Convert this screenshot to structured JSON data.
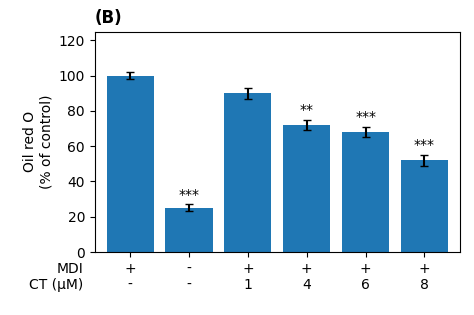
{
  "chart_data": {
    "type": "bar",
    "title": "(B)",
    "categories": [
      "+\n-",
      "-\n-",
      "+\n1",
      "+\n4",
      "+\n6",
      "+\n8"
    ],
    "category_row_labels": [
      "MDI",
      "CT (μM)"
    ],
    "values": [
      100,
      25,
      90,
      72,
      68,
      52
    ],
    "errors": [
      2,
      2,
      3,
      3,
      3,
      3
    ],
    "y_label": "Oil red O\n(% of control)",
    "ylim": [
      0,
      125
    ],
    "yticks": [
      0,
      20,
      40,
      60,
      80,
      100,
      120
    ],
    "grid": false,
    "annotations": [
      {
        "category": "-\n-",
        "text": "***"
      },
      {
        "category": "+\n4",
        "text": "**"
      },
      {
        "category": "+\n6",
        "text": "***"
      },
      {
        "category": "+\n8",
        "text": "***"
      }
    ]
  }
}
